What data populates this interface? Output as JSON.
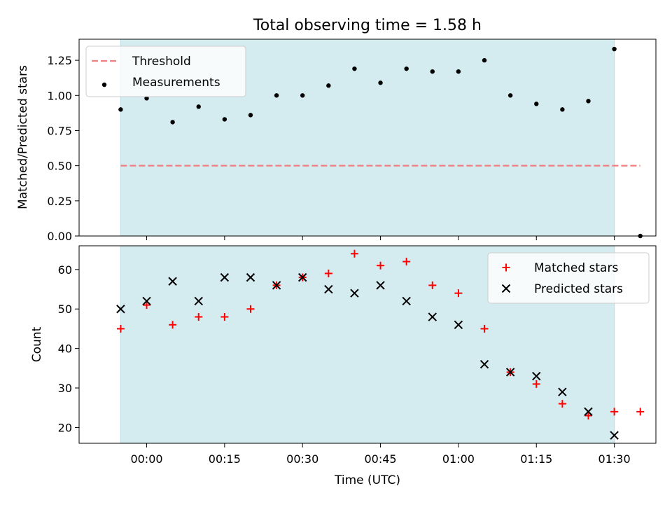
{
  "figure": {
    "title": "Total observing time = 1.58 h",
    "xlabel": "Time (UTC)",
    "xticks": [
      {
        "label": "00:00",
        "t": 0
      },
      {
        "label": "00:15",
        "t": 15
      },
      {
        "label": "00:30",
        "t": 30
      },
      {
        "label": "00:45",
        "t": 45
      },
      {
        "label": "01:00",
        "t": 60
      },
      {
        "label": "01:15",
        "t": 75
      },
      {
        "label": "01:30",
        "t": 90
      }
    ]
  },
  "chart_data": [
    {
      "type": "scatter",
      "ylabel": "Matched/Predicted stars",
      "ylim": [
        0,
        1.4
      ],
      "yticks": [
        {
          "label": "0.00",
          "v": 0
        },
        {
          "label": "0.25",
          "v": 0.25
        },
        {
          "label": "0.50",
          "v": 0.5
        },
        {
          "label": "0.75",
          "v": 0.75
        },
        {
          "label": "1.00",
          "v": 1.0
        },
        {
          "label": "1.25",
          "v": 1.25
        }
      ],
      "xlim": [
        "23:47",
        "01:38"
      ],
      "shaded_region": [
        "23:55",
        "01:30"
      ],
      "shaded_color": "#d4ebf0",
      "legend_position": "top-left",
      "threshold": {
        "name": "Threshold",
        "value": 0.5,
        "x_range": [
          "23:55",
          "01:35"
        ],
        "color": "#f08080",
        "style": "dashed"
      },
      "series": [
        {
          "name": "Measurements",
          "marker": "dot",
          "color": "#000000",
          "x": [
            "23:55",
            "00:00",
            "00:05",
            "00:10",
            "00:15",
            "00:20",
            "00:25",
            "00:30",
            "00:35",
            "00:40",
            "00:45",
            "00:50",
            "00:55",
            "01:00",
            "01:05",
            "01:10",
            "01:15",
            "01:20",
            "01:25",
            "01:30",
            "01:35"
          ],
          "y": [
            0.9,
            0.98,
            0.81,
            0.92,
            0.83,
            0.86,
            1.0,
            1.0,
            1.07,
            1.19,
            1.09,
            1.19,
            1.17,
            1.17,
            1.25,
            1.0,
            0.94,
            0.9,
            0.96,
            1.33,
            0.0
          ]
        }
      ]
    },
    {
      "type": "scatter",
      "ylabel": "Count",
      "ylim": [
        16,
        66
      ],
      "yticks": [
        {
          "label": "20",
          "v": 20
        },
        {
          "label": "30",
          "v": 30
        },
        {
          "label": "40",
          "v": 40
        },
        {
          "label": "50",
          "v": 50
        },
        {
          "label": "60",
          "v": 60
        }
      ],
      "xlim": [
        "23:47",
        "01:38"
      ],
      "shaded_region": [
        "23:55",
        "01:30"
      ],
      "shaded_color": "#d4ebf0",
      "legend_position": "top-right",
      "series": [
        {
          "name": "Matched stars",
          "marker": "plus",
          "color": "#ff0000",
          "x": [
            "23:55",
            "00:00",
            "00:05",
            "00:10",
            "00:15",
            "00:20",
            "00:25",
            "00:30",
            "00:35",
            "00:40",
            "00:45",
            "00:50",
            "00:55",
            "01:00",
            "01:05",
            "01:10",
            "01:15",
            "01:20",
            "01:25",
            "01:30",
            "01:35"
          ],
          "y": [
            45,
            51,
            46,
            48,
            48,
            50,
            56,
            58,
            59,
            64,
            61,
            62,
            56,
            54,
            45,
            34,
            31,
            26,
            23,
            24,
            24
          ]
        },
        {
          "name": "Predicted stars",
          "marker": "x",
          "color": "#000000",
          "x": [
            "23:55",
            "00:00",
            "00:05",
            "00:10",
            "00:15",
            "00:20",
            "00:25",
            "00:30",
            "00:35",
            "00:40",
            "00:45",
            "00:50",
            "00:55",
            "01:00",
            "01:05",
            "01:10",
            "01:15",
            "01:20",
            "01:25",
            "01:30"
          ],
          "y": [
            50,
            52,
            57,
            52,
            58,
            58,
            56,
            58,
            55,
            54,
            56,
            52,
            48,
            46,
            36,
            34,
            33,
            29,
            24,
            18
          ]
        }
      ]
    }
  ]
}
